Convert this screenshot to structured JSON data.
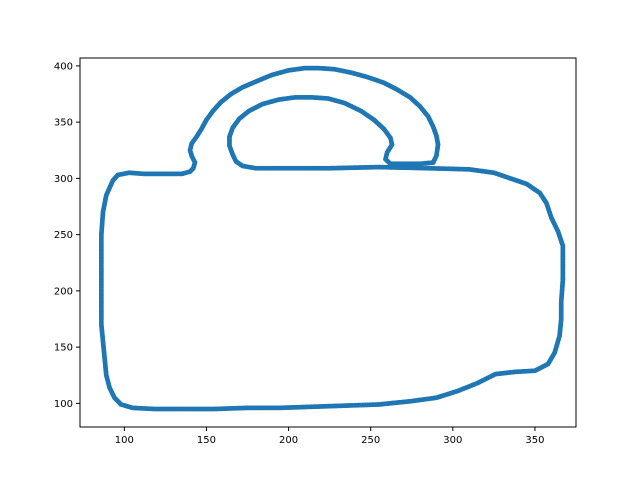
{
  "chart_data": {
    "type": "scatter",
    "title": "",
    "xlabel": "",
    "ylabel": "",
    "xlim": [
      73,
      375
    ],
    "ylim": [
      79,
      407
    ],
    "grid": false,
    "series_color": "#1f77b4",
    "x_ticks": [
      100,
      150,
      200,
      250,
      300,
      350
    ],
    "x_tick_labels": [
      "100",
      "150",
      "200",
      "250",
      "300",
      "350"
    ],
    "y_ticks": [
      100,
      150,
      200,
      250,
      300,
      350,
      400
    ],
    "y_tick_labels": [
      "100",
      "150",
      "200",
      "250",
      "300",
      "350",
      "400"
    ],
    "series": [
      {
        "points": [
          [
            103,
            305
          ],
          [
            112,
            304
          ],
          [
            125,
            304
          ],
          [
            135,
            304
          ],
          [
            140,
            306
          ],
          [
            142,
            309
          ],
          [
            143,
            314
          ],
          [
            141,
            320
          ],
          [
            140,
            325
          ],
          [
            141,
            331
          ],
          [
            144,
            337
          ],
          [
            147,
            344
          ],
          [
            150,
            352
          ],
          [
            154,
            360
          ],
          [
            159,
            368
          ],
          [
            165,
            375
          ],
          [
            172,
            381
          ],
          [
            180,
            386
          ],
          [
            190,
            392
          ],
          [
            200,
            396
          ],
          [
            210,
            398
          ],
          [
            218,
            398
          ],
          [
            228,
            397
          ],
          [
            238,
            394
          ],
          [
            248,
            390
          ],
          [
            258,
            385
          ],
          [
            266,
            379
          ],
          [
            274,
            372
          ],
          [
            280,
            364
          ],
          [
            285,
            355
          ],
          [
            288,
            346
          ],
          [
            290,
            338
          ],
          [
            291,
            330
          ],
          [
            290,
            320
          ],
          [
            288,
            314
          ],
          [
            280,
            313
          ],
          [
            270,
            313
          ],
          [
            262,
            313
          ],
          [
            259,
            317
          ],
          [
            260,
            323
          ],
          [
            263,
            330
          ],
          [
            262,
            336
          ],
          [
            258,
            344
          ],
          [
            252,
            352
          ],
          [
            244,
            360
          ],
          [
            234,
            367
          ],
          [
            224,
            371
          ],
          [
            214,
            372
          ],
          [
            204,
            372
          ],
          [
            194,
            370
          ],
          [
            184,
            366
          ],
          [
            176,
            360
          ],
          [
            170,
            353
          ],
          [
            166,
            345
          ],
          [
            164,
            337
          ],
          [
            164,
            329
          ],
          [
            166,
            321
          ],
          [
            168,
            315
          ],
          [
            172,
            311
          ],
          [
            180,
            309
          ],
          [
            200,
            309
          ],
          [
            225,
            309
          ],
          [
            255,
            310
          ],
          [
            285,
            309
          ],
          [
            310,
            308
          ],
          [
            325,
            305
          ],
          [
            335,
            300
          ],
          [
            345,
            295
          ],
          [
            353,
            287
          ],
          [
            357,
            278
          ],
          [
            360,
            265
          ],
          [
            364,
            253
          ],
          [
            367,
            240
          ],
          [
            367,
            225
          ],
          [
            367,
            210
          ],
          [
            366,
            190
          ],
          [
            366,
            175
          ],
          [
            365,
            160
          ],
          [
            362,
            145
          ],
          [
            358,
            135
          ],
          [
            350,
            129
          ],
          [
            338,
            128
          ],
          [
            326,
            126
          ],
          [
            315,
            118
          ],
          [
            303,
            111
          ],
          [
            290,
            105
          ],
          [
            275,
            102
          ],
          [
            255,
            99
          ],
          [
            235,
            98
          ],
          [
            215,
            97
          ],
          [
            195,
            96
          ],
          [
            175,
            96
          ],
          [
            155,
            95
          ],
          [
            135,
            95
          ],
          [
            118,
            95
          ],
          [
            105,
            96
          ],
          [
            98,
            99
          ],
          [
            94,
            105
          ],
          [
            91,
            114
          ],
          [
            89,
            125
          ],
          [
            88,
            140
          ],
          [
            87,
            155
          ],
          [
            86,
            170
          ],
          [
            86,
            190
          ],
          [
            86,
            210
          ],
          [
            86,
            230
          ],
          [
            86,
            250
          ],
          [
            87,
            270
          ],
          [
            89,
            285
          ],
          [
            93,
            298
          ],
          [
            96,
            303
          ]
        ]
      }
    ]
  }
}
